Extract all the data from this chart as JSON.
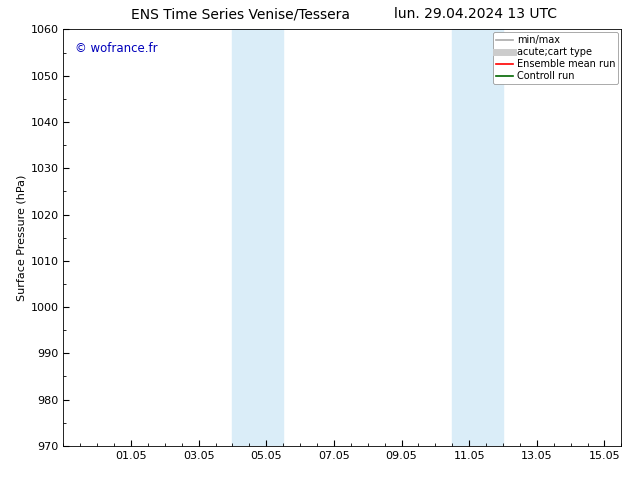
{
  "title_left": "ENS Time Series Venise/Tessera",
  "title_right": "lun. 29.04.2024 13 UTC",
  "ylabel": "Surface Pressure (hPa)",
  "ylim": [
    970,
    1060
  ],
  "yticks": [
    970,
    980,
    990,
    1000,
    1010,
    1020,
    1030,
    1040,
    1050,
    1060
  ],
  "xlim": [
    0,
    16.5
  ],
  "xtick_positions": [
    2,
    4,
    6,
    8,
    10,
    12,
    14,
    16
  ],
  "xtick_labels": [
    "01.05",
    "03.05",
    "05.05",
    "07.05",
    "09.05",
    "11.05",
    "13.05",
    "15.05"
  ],
  "watermark": "© wofrance.fr",
  "watermark_color": "#0000bb",
  "bg_color": "#ffffff",
  "plot_bg_color": "#ffffff",
  "shaded_bands": [
    {
      "xstart": 5.0,
      "xend": 6.5,
      "color": "#daedf8"
    },
    {
      "xstart": 11.5,
      "xend": 13.0,
      "color": "#daedf8"
    }
  ],
  "legend_entries": [
    {
      "label": "min/max",
      "color": "#aaaaaa",
      "lw": 1.2,
      "linestyle": "-"
    },
    {
      "label": "acute;cart type",
      "color": "#cccccc",
      "lw": 5,
      "linestyle": "-"
    },
    {
      "label": "Ensemble mean run",
      "color": "#ff0000",
      "lw": 1.2,
      "linestyle": "-"
    },
    {
      "label": "Controll run",
      "color": "#006600",
      "lw": 1.2,
      "linestyle": "-"
    }
  ],
  "title_fontsize": 10,
  "tick_fontsize": 8,
  "label_fontsize": 8,
  "legend_fontsize": 7
}
